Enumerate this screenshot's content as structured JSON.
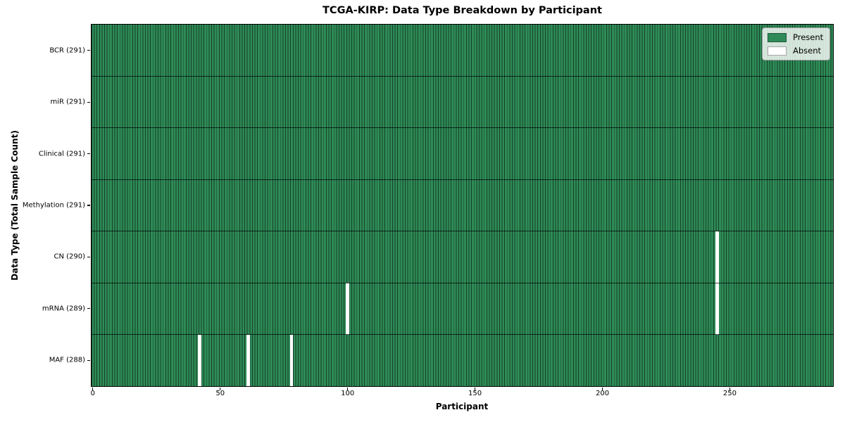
{
  "chart_data": {
    "type": "heatmap",
    "title": "TCGA-KIRP: Data Type Breakdown by Participant",
    "xlabel": "Participant",
    "ylabel": "Data Type (Total Sample Count)",
    "n_participants": 291,
    "xlim": [
      -0.5,
      290.5
    ],
    "x_ticks": [
      0,
      50,
      100,
      150,
      200,
      250
    ],
    "grid": false,
    "legend": {
      "position": "upper right",
      "entries": [
        {
          "label": "Present",
          "color": "#2e8b57"
        },
        {
          "label": "Absent",
          "color": "#ffffff"
        }
      ]
    },
    "colors": {
      "present": "#2e8b57",
      "absent": "#ffffff",
      "cell_edge": "rgba(0,0,0,0.55)",
      "row_separator": "rgba(0,0,0,0.7)"
    },
    "rows": [
      {
        "label": "BCR (291)",
        "data_type": "BCR",
        "present_count": 291,
        "absent_participants": []
      },
      {
        "label": "miR (291)",
        "data_type": "miR",
        "present_count": 291,
        "absent_participants": []
      },
      {
        "label": "Clinical (291)",
        "data_type": "Clinical",
        "present_count": 291,
        "absent_participants": []
      },
      {
        "label": "Methylation (291)",
        "data_type": "Methylation",
        "present_count": 291,
        "absent_participants": []
      },
      {
        "label": "CN (290)",
        "data_type": "CN",
        "present_count": 290,
        "absent_participants": [
          245
        ]
      },
      {
        "label": "mRNA (289)",
        "data_type": "mRNA",
        "present_count": 289,
        "absent_participants": [
          100,
          245
        ]
      },
      {
        "label": "MAF (288)",
        "data_type": "MAF",
        "present_count": 288,
        "absent_participants": [
          42,
          61,
          78
        ]
      }
    ]
  }
}
